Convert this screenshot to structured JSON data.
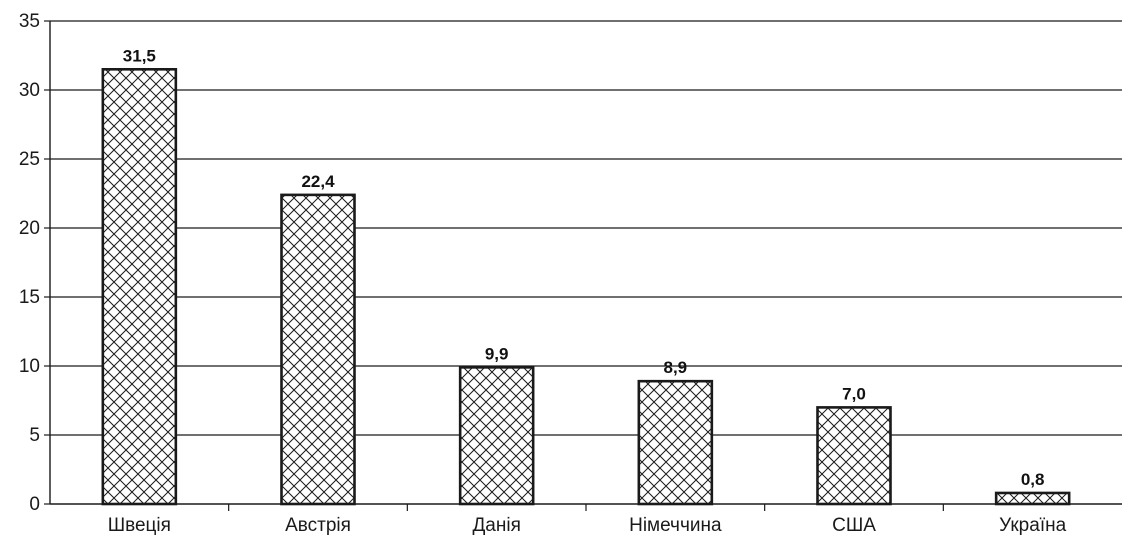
{
  "chart_data": {
    "type": "bar",
    "categories": [
      "Швеція",
      "Австрія",
      "Данія",
      "Німеччина",
      "США",
      "Україна"
    ],
    "series": [
      {
        "values": [
          31.5,
          22.4,
          9.9,
          8.9,
          7.0,
          0.8
        ],
        "data_labels": [
          "31,5",
          "22,4",
          "9,9",
          "8,9",
          "7,0",
          "0,8"
        ]
      }
    ],
    "ylim": [
      0,
      35
    ],
    "yticks": [
      0,
      5,
      10,
      15,
      20,
      25,
      30,
      35
    ],
    "ytick_labels": [
      "0",
      "5",
      "10",
      "15",
      "20",
      "25",
      "30",
      "35"
    ],
    "grid": true,
    "bar_fill": "crosshatch",
    "colors": {
      "bar_stroke": "#1a1a1a",
      "grid": "#1a1a1a",
      "axis": "#1a1a1a"
    }
  }
}
